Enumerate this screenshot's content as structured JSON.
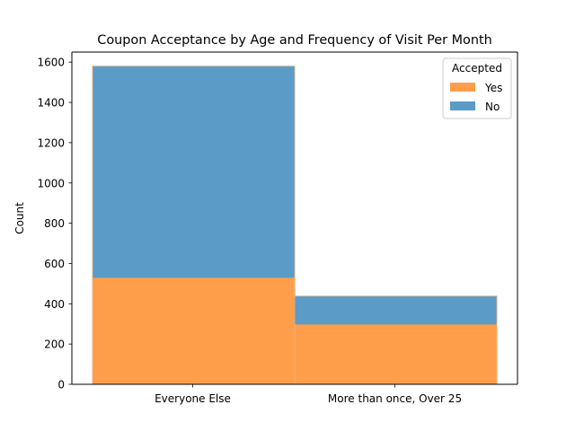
{
  "chart_data": {
    "type": "bar",
    "stacked": true,
    "title": "Coupon Acceptance by Age and Frequency of Visit Per Month",
    "xlabel": "",
    "ylabel": "Count",
    "categories": [
      "Everyone Else",
      "More than once, Over 25"
    ],
    "ylim": [
      0,
      1650
    ],
    "yticks": [
      0,
      200,
      400,
      600,
      800,
      1000,
      1200,
      1400,
      1600
    ],
    "grid": false,
    "legend": {
      "title": "Accepted",
      "placement": "top-right",
      "entries": [
        "Yes",
        "No"
      ]
    },
    "series": [
      {
        "name": "Yes",
        "values": [
          531,
          299
        ],
        "color": "#ff9e4a"
      },
      {
        "name": "No",
        "values": [
          1049,
          139
        ],
        "color": "#5a9bc8"
      }
    ]
  }
}
